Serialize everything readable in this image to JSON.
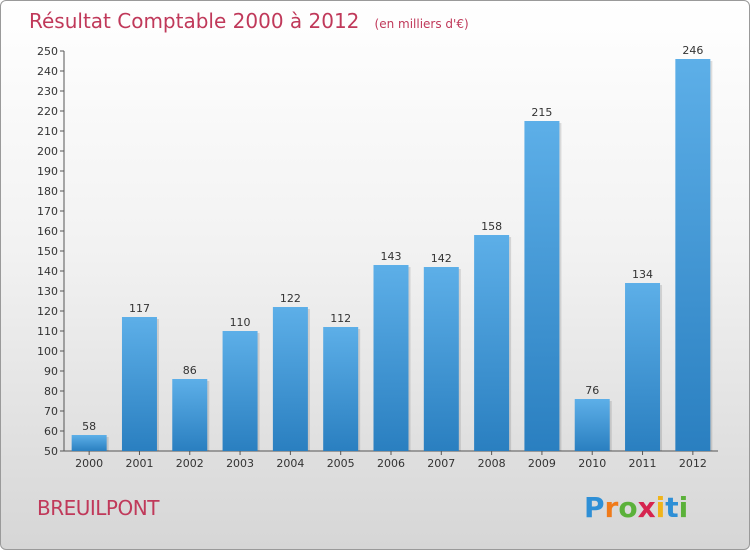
{
  "chart_data": {
    "type": "bar",
    "title": "Résultat Comptable 2000 à 2012",
    "subtitle": "(en milliers d'€)",
    "categories": [
      "2000",
      "2001",
      "2002",
      "2003",
      "2004",
      "2005",
      "2006",
      "2007",
      "2008",
      "2009",
      "2010",
      "2011",
      "2012"
    ],
    "values": [
      58,
      117,
      86,
      110,
      122,
      112,
      143,
      142,
      158,
      215,
      76,
      134,
      246
    ],
    "ylim": [
      50,
      250
    ],
    "ytick_step": 10,
    "grid": false,
    "xlabel": "",
    "ylabel": ""
  },
  "place_name": "BREUILPONT",
  "logo": {
    "letters": [
      "P",
      "r",
      "o",
      "x",
      "i",
      "t",
      "i"
    ],
    "colors": [
      "#2e8fd6",
      "#f07b1a",
      "#5bb13a",
      "#d6244f",
      "#f0b41a",
      "#2e8fd6",
      "#5bb13a"
    ]
  },
  "colors": {
    "bar_top": "#5dafe8",
    "bar_bottom": "#2a7fc0",
    "title": "#c0395a"
  }
}
